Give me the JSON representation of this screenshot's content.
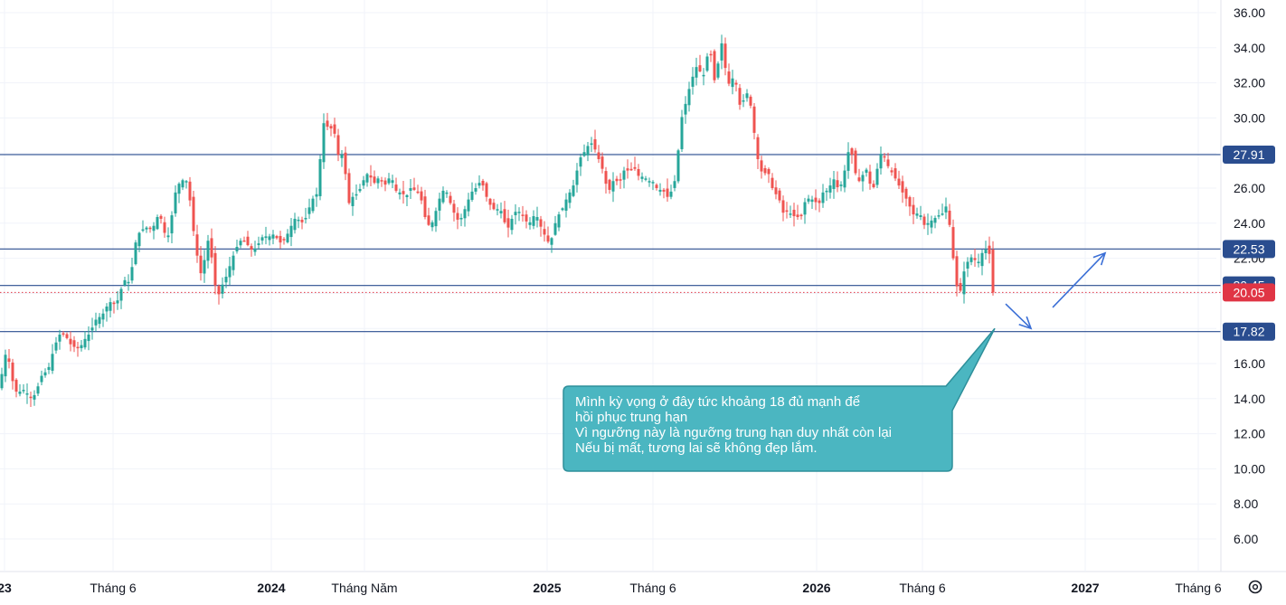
{
  "chart_data": {
    "type": "candlestick",
    "y_ticks": [
      "6.00",
      "8.00",
      "10.00",
      "12.00",
      "14.00",
      "16.00",
      "18.00",
      "20.00",
      "22.00",
      "24.00",
      "26.00",
      "28.00",
      "30.00",
      "32.00",
      "34.00",
      "36.00"
    ],
    "ylim": [
      4.0,
      36.6
    ],
    "x_ticks": [
      {
        "label": "23",
        "bold": true
      },
      {
        "label": "Tháng 6",
        "bold": false
      },
      {
        "label": "2024",
        "bold": true
      },
      {
        "label": "Tháng Năm",
        "bold": false
      },
      {
        "label": "2025",
        "bold": true
      },
      {
        "label": "Tháng 6",
        "bold": false
      },
      {
        "label": "2026",
        "bold": true
      },
      {
        "label": "Tháng 6",
        "bold": false
      },
      {
        "label": "2027",
        "bold": true
      },
      {
        "label": "Tháng 6",
        "bold": false
      }
    ],
    "levels": [
      {
        "value": 27.91,
        "label": "27.91",
        "color": "#2a4d8f"
      },
      {
        "value": 22.53,
        "label": "22.53",
        "color": "#2a4d8f"
      },
      {
        "value": 20.45,
        "label": "20.45",
        "color": "#2a4d8f"
      },
      {
        "value": 17.82,
        "label": "17.82",
        "color": "#2a4d8f"
      }
    ],
    "last_price": {
      "value": 20.05,
      "label": "20.05",
      "color": "#e03545"
    },
    "close_path": [
      [
        0,
        14.6
      ],
      [
        4,
        16.2
      ],
      [
        8,
        16.8
      ],
      [
        12,
        15.4
      ],
      [
        16,
        14.6
      ],
      [
        20,
        14.2
      ],
      [
        24,
        14.6
      ],
      [
        28,
        14.4
      ],
      [
        32,
        14.2
      ],
      [
        36,
        14.0
      ],
      [
        40,
        14.4
      ],
      [
        44,
        15.0
      ],
      [
        48,
        15.6
      ],
      [
        52,
        15.4
      ],
      [
        56,
        16.2
      ],
      [
        60,
        16.9
      ],
      [
        64,
        17.5
      ],
      [
        68,
        17.8
      ],
      [
        72,
        17.6
      ],
      [
        76,
        17.3
      ],
      [
        80,
        16.9
      ],
      [
        84,
        17.0
      ],
      [
        88,
        16.8
      ],
      [
        92,
        17.3
      ],
      [
        96,
        17.5
      ],
      [
        100,
        17.8
      ],
      [
        104,
        18.3
      ],
      [
        108,
        18.7
      ],
      [
        112,
        18.6
      ],
      [
        116,
        19.1
      ],
      [
        120,
        19.4
      ],
      [
        124,
        19.6
      ],
      [
        128,
        19.3
      ],
      [
        132,
        19.9
      ],
      [
        136,
        20.6
      ],
      [
        140,
        20.9
      ],
      [
        144,
        20.4
      ],
      [
        148,
        22.6
      ],
      [
        152,
        23.2
      ],
      [
        156,
        23.7
      ],
      [
        160,
        23.6
      ],
      [
        164,
        23.9
      ],
      [
        168,
        23.5
      ],
      [
        172,
        24.2
      ],
      [
        176,
        24.5
      ],
      [
        180,
        24.0
      ],
      [
        184,
        22.9
      ],
      [
        188,
        23.7
      ],
      [
        192,
        25.2
      ],
      [
        196,
        26.3
      ],
      [
        200,
        26.2
      ],
      [
        204,
        26.7
      ],
      [
        208,
        26.1
      ],
      [
        212,
        24.5
      ],
      [
        216,
        22.6
      ],
      [
        220,
        21.7
      ],
      [
        224,
        20.6
      ],
      [
        228,
        23.2
      ],
      [
        232,
        22.8
      ],
      [
        236,
        21.3
      ],
      [
        240,
        19.6
      ],
      [
        244,
        20.3
      ],
      [
        248,
        20.7
      ],
      [
        252,
        21.2
      ],
      [
        256,
        21.9
      ],
      [
        260,
        22.4
      ],
      [
        264,
        22.9
      ],
      [
        268,
        23.1
      ],
      [
        272,
        22.9
      ],
      [
        276,
        22.6
      ],
      [
        280,
        22.4
      ],
      [
        284,
        22.7
      ],
      [
        288,
        23.0
      ],
      [
        292,
        23.4
      ],
      [
        296,
        23.1
      ],
      [
        300,
        23.4
      ],
      [
        304,
        23.3
      ],
      [
        308,
        23.0
      ],
      [
        312,
        22.8
      ],
      [
        316,
        23.3
      ],
      [
        320,
        23.5
      ],
      [
        324,
        24.2
      ],
      [
        328,
        24.3
      ],
      [
        332,
        24.1
      ],
      [
        336,
        24.0
      ],
      [
        340,
        24.6
      ],
      [
        344,
        25.2
      ],
      [
        348,
        25.6
      ],
      [
        352,
        25.7
      ],
      [
        356,
        29.6
      ],
      [
        360,
        29.8
      ],
      [
        364,
        29.2
      ],
      [
        368,
        29.6
      ],
      [
        372,
        28.6
      ],
      [
        376,
        27.2
      ],
      [
        380,
        28.6
      ],
      [
        384,
        25.0
      ],
      [
        388,
        25.3
      ],
      [
        392,
        25.7
      ],
      [
        396,
        25.6
      ],
      [
        400,
        26.3
      ],
      [
        404,
        26.6
      ],
      [
        408,
        27.0
      ],
      [
        412,
        26.2
      ],
      [
        416,
        26.4
      ],
      [
        420,
        26.7
      ],
      [
        424,
        26.1
      ],
      [
        428,
        26.3
      ],
      [
        432,
        26.8
      ],
      [
        436,
        26.1
      ],
      [
        440,
        25.6
      ],
      [
        444,
        25.9
      ],
      [
        448,
        25.4
      ],
      [
        452,
        25.8
      ],
      [
        456,
        26.2
      ],
      [
        460,
        25.6
      ],
      [
        464,
        25.9
      ],
      [
        468,
        24.7
      ],
      [
        472,
        24.0
      ],
      [
        476,
        23.8
      ],
      [
        480,
        24.3
      ],
      [
        484,
        25.1
      ],
      [
        488,
        25.7
      ],
      [
        492,
        26.0
      ],
      [
        496,
        25.5
      ],
      [
        500,
        24.8
      ],
      [
        504,
        24.4
      ],
      [
        508,
        24.0
      ],
      [
        512,
        24.6
      ],
      [
        516,
        25.0
      ],
      [
        520,
        25.7
      ],
      [
        524,
        25.9
      ],
      [
        528,
        26.1
      ],
      [
        532,
        26.5
      ],
      [
        536,
        25.8
      ],
      [
        540,
        25.2
      ],
      [
        544,
        24.9
      ],
      [
        548,
        24.7
      ],
      [
        552,
        24.9
      ],
      [
        556,
        24.5
      ],
      [
        560,
        23.6
      ],
      [
        564,
        23.9
      ],
      [
        568,
        24.6
      ],
      [
        572,
        24.7
      ],
      [
        576,
        24.6
      ],
      [
        580,
        24.3
      ],
      [
        584,
        23.9
      ],
      [
        588,
        24.2
      ],
      [
        592,
        24.6
      ],
      [
        596,
        24.1
      ],
      [
        600,
        23.5
      ],
      [
        604,
        23.2
      ],
      [
        608,
        22.7
      ],
      [
        612,
        23.6
      ],
      [
        616,
        24.4
      ],
      [
        620,
        24.6
      ],
      [
        624,
        25.1
      ],
      [
        628,
        25.6
      ],
      [
        632,
        25.9
      ],
      [
        636,
        26.4
      ],
      [
        640,
        27.6
      ],
      [
        644,
        27.9
      ],
      [
        648,
        28.2
      ],
      [
        652,
        28.6
      ],
      [
        656,
        28.5
      ],
      [
        660,
        27.9
      ],
      [
        664,
        27.4
      ],
      [
        668,
        26.8
      ],
      [
        672,
        25.7
      ],
      [
        676,
        26.1
      ],
      [
        680,
        26.7
      ],
      [
        684,
        26.1
      ],
      [
        688,
        26.8
      ],
      [
        692,
        27.2
      ],
      [
        696,
        26.8
      ],
      [
        700,
        27.3
      ],
      [
        704,
        26.9
      ],
      [
        708,
        26.5
      ],
      [
        712,
        26.8
      ],
      [
        716,
        26.3
      ],
      [
        720,
        26.5
      ],
      [
        724,
        26.2
      ],
      [
        728,
        25.8
      ],
      [
        732,
        26.0
      ],
      [
        736,
        25.6
      ],
      [
        740,
        25.4
      ],
      [
        744,
        26.2
      ],
      [
        748,
        26.6
      ],
      [
        752,
        29.7
      ],
      [
        756,
        30.4
      ],
      [
        760,
        31.2
      ],
      [
        764,
        32.1
      ],
      [
        768,
        32.6
      ],
      [
        772,
        33.2
      ],
      [
        776,
        32.1
      ],
      [
        780,
        32.8
      ],
      [
        784,
        34.2
      ],
      [
        788,
        33.0
      ],
      [
        792,
        31.3
      ],
      [
        796,
        34.9
      ],
      [
        800,
        33.6
      ],
      [
        804,
        32.1
      ],
      [
        808,
        31.8
      ],
      [
        812,
        32.7
      ],
      [
        816,
        31.1
      ],
      [
        820,
        30.4
      ],
      [
        824,
        31.6
      ],
      [
        828,
        31.2
      ],
      [
        832,
        30.2
      ],
      [
        836,
        28.1
      ],
      [
        840,
        27.2
      ],
      [
        844,
        26.7
      ],
      [
        848,
        27.0
      ],
      [
        852,
        26.6
      ],
      [
        856,
        25.4
      ],
      [
        860,
        25.9
      ],
      [
        864,
        24.7
      ],
      [
        868,
        24.5
      ],
      [
        872,
        24.9
      ],
      [
        876,
        24.2
      ],
      [
        880,
        24.6
      ],
      [
        884,
        24.1
      ],
      [
        888,
        24.8
      ],
      [
        892,
        25.6
      ],
      [
        896,
        25.2
      ],
      [
        900,
        25.5
      ],
      [
        904,
        24.9
      ],
      [
        908,
        25.4
      ],
      [
        912,
        26.1
      ],
      [
        916,
        25.6
      ],
      [
        920,
        26.7
      ],
      [
        924,
        26.3
      ],
      [
        928,
        25.8
      ],
      [
        932,
        26.6
      ],
      [
        936,
        27.4
      ],
      [
        940,
        28.7
      ],
      [
        944,
        27.1
      ],
      [
        948,
        26.6
      ],
      [
        952,
        26.2
      ],
      [
        956,
        27.3
      ],
      [
        960,
        26.8
      ],
      [
        964,
        25.7
      ],
      [
        968,
        26.4
      ],
      [
        972,
        27.8
      ],
      [
        976,
        28.1
      ],
      [
        980,
        27.4
      ],
      [
        984,
        27.1
      ],
      [
        988,
        26.7
      ],
      [
        992,
        26.4
      ],
      [
        996,
        25.9
      ],
      [
        1000,
        25.6
      ],
      [
        1004,
        25.2
      ],
      [
        1008,
        24.7
      ],
      [
        1012,
        24.3
      ],
      [
        1016,
        24.8
      ],
      [
        1020,
        24.1
      ],
      [
        1024,
        23.7
      ],
      [
        1028,
        24.3
      ],
      [
        1032,
        24.0
      ],
      [
        1036,
        24.6
      ],
      [
        1040,
        24.3
      ],
      [
        1044,
        24.8
      ],
      [
        1048,
        25.1
      ],
      [
        1052,
        22.7
      ],
      [
        1056,
        21.3
      ],
      [
        1060,
        19.5
      ],
      [
        1064,
        20.8
      ],
      [
        1068,
        21.7
      ],
      [
        1072,
        21.9
      ],
      [
        1076,
        22.2
      ],
      [
        1080,
        21.6
      ],
      [
        1084,
        22.0
      ],
      [
        1088,
        22.6
      ],
      [
        1092,
        22.4
      ],
      [
        1096,
        22.1
      ],
      [
        1100,
        20.05
      ]
    ],
    "forecast_path": [
      [
        1112,
        19.4
      ],
      [
        1140,
        18.0
      ],
      [
        1164,
        19.2
      ],
      [
        1222,
        22.3
      ]
    ],
    "forecast_color": "#3b6fd6",
    "annotation": {
      "lines": [
        "Mình kỳ vọng ở đây tức khoảng 18 đủ mạnh để",
        "hồi phục trung hạn",
        "Vì ngưỡng này là ngưỡng trung hạn duy nhất còn lại",
        "Nếu bị mất, tương lai sẽ không đẹp lắm."
      ],
      "fill": "#4bb6c1",
      "border": "#2e8f9a"
    },
    "up_color": "#26a69a",
    "down_color": "#ef5350",
    "settings_icon": "gear-icon"
  }
}
